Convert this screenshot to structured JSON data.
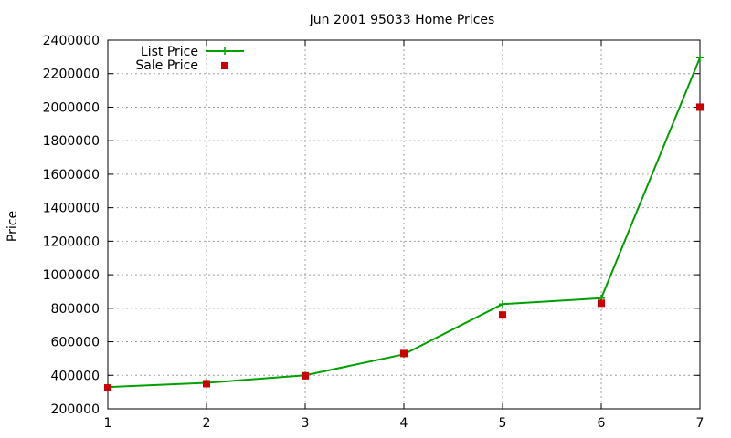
{
  "chart_data": {
    "type": "line",
    "title": "Jun 2001 95033 Home Prices",
    "xlabel": "",
    "ylabel": "Price",
    "x": [
      1,
      2,
      3,
      4,
      5,
      6,
      7
    ],
    "xlim": [
      1,
      7
    ],
    "ylim": [
      200000,
      2400000
    ],
    "xticks": [
      1,
      2,
      3,
      4,
      5,
      6,
      7
    ],
    "yticks": [
      200000,
      400000,
      600000,
      800000,
      1000000,
      1200000,
      1400000,
      1600000,
      1800000,
      2000000,
      2200000,
      2400000
    ],
    "grid": true,
    "legend_position": "top-left",
    "series": [
      {
        "name": "List Price",
        "style": "line-with-plus-markers",
        "color": "#00a000",
        "values": [
          330000,
          355000,
          400000,
          525000,
          825000,
          860000,
          2295000
        ]
      },
      {
        "name": "Sale Price",
        "style": "square-markers",
        "color": "#cc0000",
        "values": [
          325000,
          350000,
          397000,
          530000,
          760000,
          830000,
          2000000
        ]
      }
    ]
  }
}
